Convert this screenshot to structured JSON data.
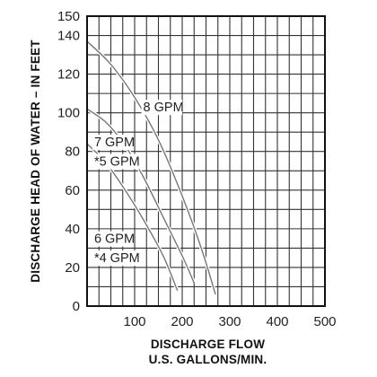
{
  "chart_data": {
    "type": "line",
    "xlabel_line1": "DISCHARGE FLOW",
    "xlabel_line2": "U.S. GALLONS/MIN.",
    "ylabel": "DISCHARGE HEAD OF WATER – IN FEET",
    "xlim": [
      0,
      500
    ],
    "ylim": [
      0,
      150
    ],
    "xticks": [
      100,
      200,
      300,
      400,
      500
    ],
    "yticks": [
      0,
      20,
      40,
      60,
      80,
      100,
      120,
      140,
      150
    ],
    "grid": true,
    "x_gridlines": [
      25,
      50,
      75,
      100,
      125,
      150,
      175,
      200,
      225,
      250,
      275,
      300,
      325,
      350,
      375,
      400,
      425,
      450,
      475
    ],
    "y_gridlines": [
      10,
      20,
      30,
      40,
      50,
      60,
      70,
      80,
      90,
      100,
      110,
      120,
      130,
      140
    ],
    "series": [
      {
        "id": "curve-8",
        "x": [
          0,
          50,
          100,
          150,
          200,
          240,
          270
        ],
        "y": [
          137,
          125,
          108,
          86,
          57,
          30,
          6
        ]
      },
      {
        "id": "curve-7",
        "x": [
          0,
          40,
          80,
          120,
          160,
          200,
          225
        ],
        "y": [
          102,
          95,
          83,
          66,
          46,
          26,
          12
        ]
      },
      {
        "id": "curve-6",
        "x": [
          0,
          40,
          80,
          120,
          160,
          190
        ],
        "y": [
          84,
          74,
          60,
          44,
          26,
          8
        ]
      }
    ],
    "annotations": [
      {
        "text": "8 GPM",
        "x": 118,
        "y": 103
      },
      {
        "text": "7 GPM",
        "x": 15,
        "y": 85
      },
      {
        "text": "*5 GPM",
        "x": 15,
        "y": 75
      },
      {
        "text": "6 GPM",
        "x": 15,
        "y": 35
      },
      {
        "text": "*4 GPM",
        "x": 15,
        "y": 25
      }
    ]
  }
}
